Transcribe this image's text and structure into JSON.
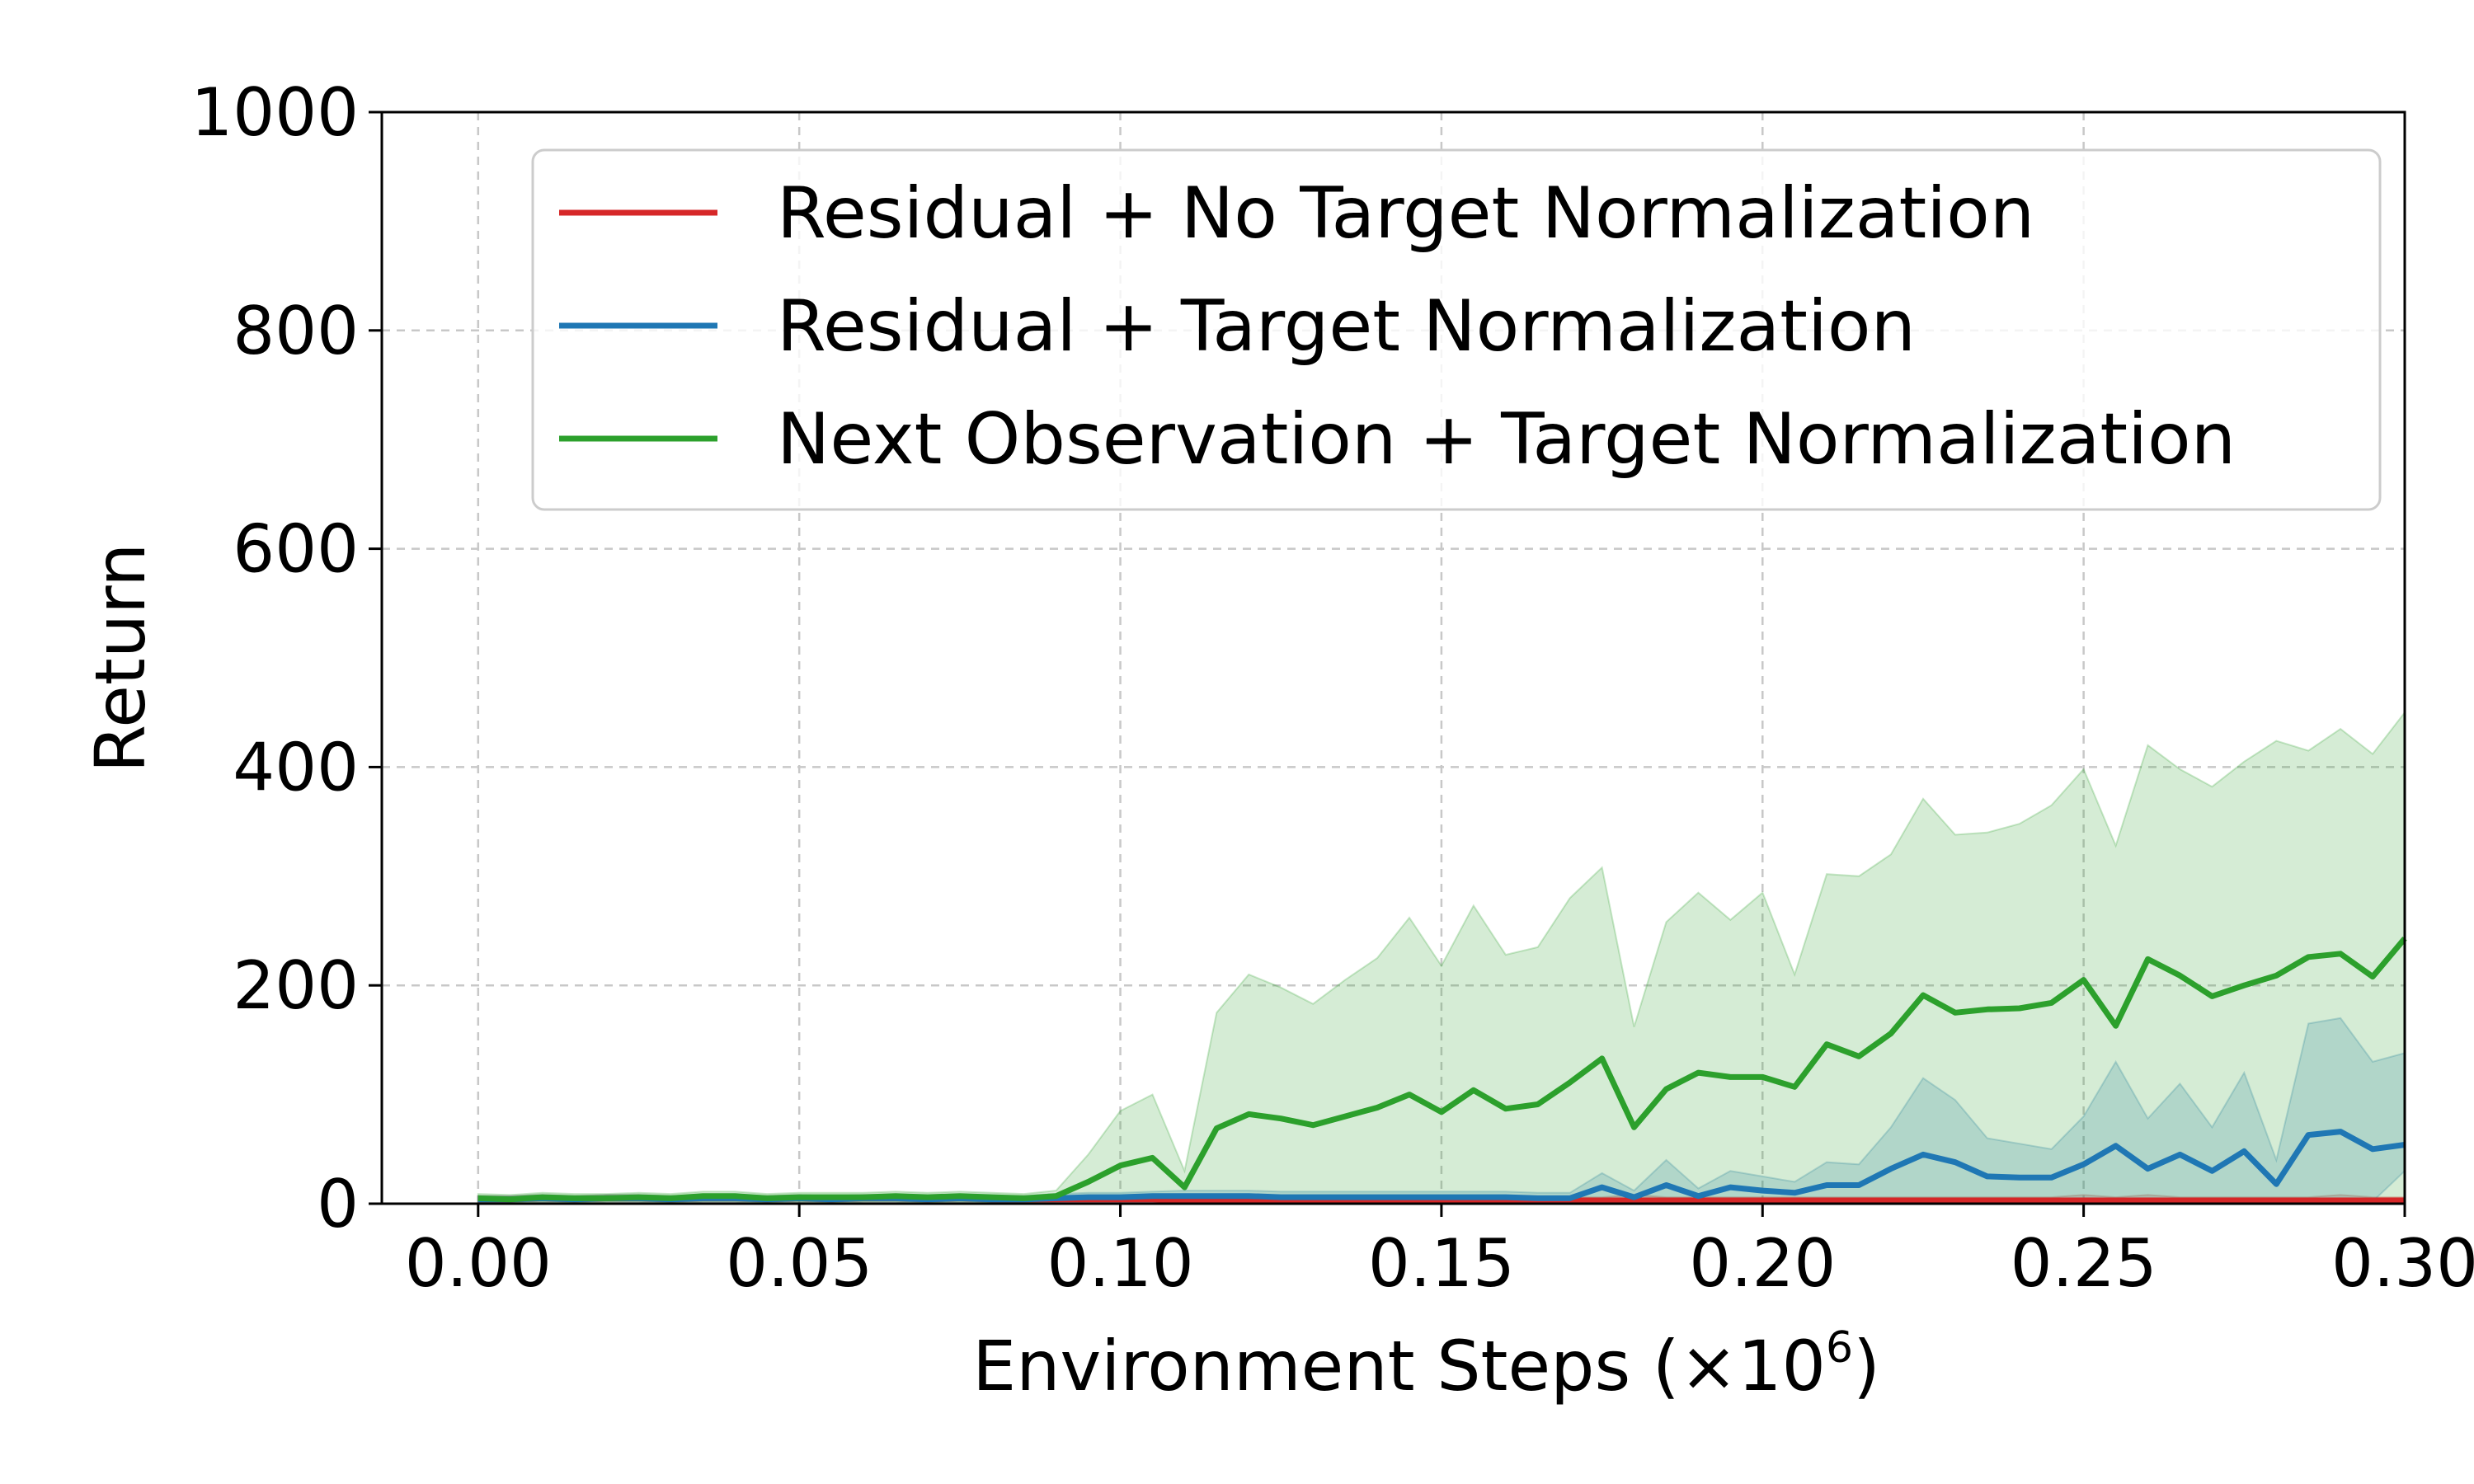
{
  "chart_data": {
    "type": "line",
    "title": "",
    "xlabel": "Environment Steps (×10",
    "xlabel_sup": "6",
    "xlabel_close": ")",
    "ylabel": "Return",
    "xlim": [
      -0.015,
      0.3
    ],
    "ylim": [
      0,
      1000
    ],
    "xticks": [
      0.0,
      0.05,
      0.1,
      0.15,
      0.2,
      0.25,
      0.3
    ],
    "xtick_labels": [
      "0.00",
      "0.05",
      "0.10",
      "0.15",
      "0.20",
      "0.25",
      "0.30"
    ],
    "yticks": [
      0,
      200,
      400,
      600,
      800,
      1000
    ],
    "ytick_labels": [
      "0",
      "200",
      "400",
      "600",
      "800",
      "1000"
    ],
    "grid": true,
    "legend_position": "top-right",
    "x": [
      0.0,
      0.005,
      0.01,
      0.015,
      0.02,
      0.025,
      0.03,
      0.035,
      0.04,
      0.045,
      0.05,
      0.055,
      0.06,
      0.065,
      0.07,
      0.075,
      0.08,
      0.085,
      0.09,
      0.095,
      0.1,
      0.105,
      0.11,
      0.115,
      0.12,
      0.125,
      0.13,
      0.135,
      0.14,
      0.145,
      0.15,
      0.155,
      0.16,
      0.165,
      0.17,
      0.175,
      0.18,
      0.185,
      0.19,
      0.195,
      0.2,
      0.205,
      0.21,
      0.215,
      0.22,
      0.225,
      0.23,
      0.235,
      0.24,
      0.245,
      0.25,
      0.255,
      0.26,
      0.265,
      0.27,
      0.275,
      0.28,
      0.285,
      0.29,
      0.295,
      0.3
    ],
    "series": [
      {
        "name": "Residual + No Target Normalization",
        "color": "#d62728",
        "values": [
          4,
          4,
          5,
          4,
          5,
          5,
          4,
          5,
          5,
          4,
          5,
          4,
          5,
          5,
          4,
          5,
          4,
          4,
          4,
          4,
          4,
          4,
          3,
          3,
          3,
          3,
          3,
          3,
          3,
          3,
          3,
          3,
          3,
          3,
          3,
          3,
          3,
          3,
          3,
          3,
          3,
          3,
          3,
          3,
          3,
          3,
          3,
          3,
          3,
          3,
          3,
          3,
          3,
          3,
          3,
          3,
          3,
          3,
          3,
          3,
          3
        ],
        "lower": [
          1,
          1,
          2,
          1,
          2,
          2,
          1,
          2,
          2,
          1,
          2,
          1,
          2,
          2,
          1,
          2,
          1,
          1,
          1,
          1,
          1,
          1,
          1,
          1,
          1,
          1,
          1,
          1,
          1,
          1,
          1,
          1,
          1,
          1,
          1,
          1,
          1,
          1,
          1,
          1,
          1,
          1,
          1,
          1,
          1,
          1,
          1,
          1,
          1,
          1,
          1,
          1,
          1,
          1,
          1,
          1,
          1,
          1,
          1,
          1,
          1
        ],
        "upper": [
          7,
          7,
          8,
          7,
          8,
          8,
          7,
          8,
          8,
          7,
          8,
          7,
          8,
          8,
          7,
          8,
          7,
          7,
          7,
          7,
          7,
          7,
          6,
          6,
          6,
          6,
          6,
          6,
          6,
          6,
          6,
          6,
          6,
          6,
          6,
          6,
          8,
          6,
          6,
          6,
          6,
          6,
          6,
          6,
          6,
          6,
          6,
          6,
          6,
          6,
          8,
          6,
          8,
          6,
          6,
          6,
          6,
          6,
          8,
          6,
          6
        ]
      },
      {
        "name": "Residual + Target Normalization",
        "color": "#1f77b4",
        "values": [
          4,
          4,
          5,
          4,
          5,
          5,
          4,
          5,
          5,
          4,
          5,
          4,
          5,
          5,
          4,
          5,
          4,
          4,
          5,
          6,
          6,
          7,
          7,
          7,
          7,
          6,
          6,
          6,
          6,
          6,
          6,
          6,
          6,
          5,
          5,
          15,
          6,
          17,
          7,
          15,
          12,
          10,
          17,
          17,
          32,
          45,
          38,
          25,
          24,
          24,
          36,
          53,
          32,
          45,
          30,
          48,
          18,
          63,
          66,
          50,
          54
        ],
        "lower": [
          1,
          1,
          2,
          1,
          2,
          2,
          1,
          2,
          2,
          1,
          2,
          1,
          2,
          2,
          1,
          2,
          1,
          1,
          2,
          2,
          2,
          2,
          2,
          2,
          2,
          2,
          2,
          2,
          2,
          2,
          2,
          2,
          2,
          2,
          2,
          2,
          2,
          2,
          2,
          2,
          2,
          2,
          2,
          2,
          2,
          2,
          2,
          2,
          2,
          2,
          2,
          2,
          2,
          2,
          2,
          2,
          2,
          2,
          2,
          2,
          30
        ],
        "upper": [
          7,
          7,
          8,
          7,
          8,
          8,
          7,
          8,
          8,
          7,
          8,
          7,
          8,
          8,
          7,
          8,
          7,
          7,
          9,
          10,
          10,
          11,
          12,
          12,
          12,
          11,
          11,
          11,
          11,
          11,
          11,
          11,
          11,
          10,
          10,
          28,
          12,
          40,
          14,
          30,
          25,
          20,
          38,
          36,
          70,
          115,
          95,
          60,
          55,
          50,
          80,
          130,
          78,
          110,
          70,
          120,
          40,
          165,
          170,
          130,
          138
        ]
      },
      {
        "name": "Next Observation + Target Normalization",
        "color": "#2ca02c",
        "values": [
          5,
          4,
          6,
          5,
          5,
          6,
          5,
          7,
          7,
          5,
          6,
          6,
          6,
          7,
          6,
          7,
          6,
          5,
          7,
          20,
          35,
          42,
          15,
          69,
          82,
          78,
          72,
          80,
          88,
          100,
          84,
          104,
          87,
          91,
          111,
          133,
          70,
          105,
          120,
          116,
          116,
          107,
          146,
          135,
          156,
          191,
          175,
          178,
          179,
          184,
          205,
          163,
          224,
          209,
          190,
          200,
          209,
          226,
          229,
          208,
          243
        ],
        "lower": [
          1,
          1,
          2,
          1,
          2,
          2,
          1,
          2,
          2,
          1,
          2,
          1,
          2,
          2,
          1,
          2,
          1,
          1,
          2,
          3,
          3,
          3,
          2,
          3,
          3,
          3,
          3,
          3,
          3,
          3,
          3,
          3,
          3,
          3,
          3,
          3,
          3,
          3,
          3,
          3,
          3,
          3,
          3,
          3,
          3,
          3,
          3,
          3,
          3,
          3,
          3,
          3,
          3,
          3,
          3,
          3,
          3,
          3,
          3,
          3,
          3
        ],
        "upper": [
          9,
          8,
          10,
          9,
          9,
          10,
          9,
          11,
          11,
          9,
          10,
          10,
          10,
          11,
          10,
          11,
          10,
          9,
          12,
          45,
          85,
          100,
          30,
          175,
          210,
          198,
          183,
          205,
          225,
          262,
          218,
          273,
          228,
          235,
          280,
          308,
          162,
          258,
          285,
          260,
          285,
          210,
          302,
          300,
          320,
          371,
          338,
          340,
          348,
          365,
          398,
          328,
          420,
          398,
          382,
          405,
          424,
          415,
          435,
          412,
          450
        ]
      }
    ]
  }
}
